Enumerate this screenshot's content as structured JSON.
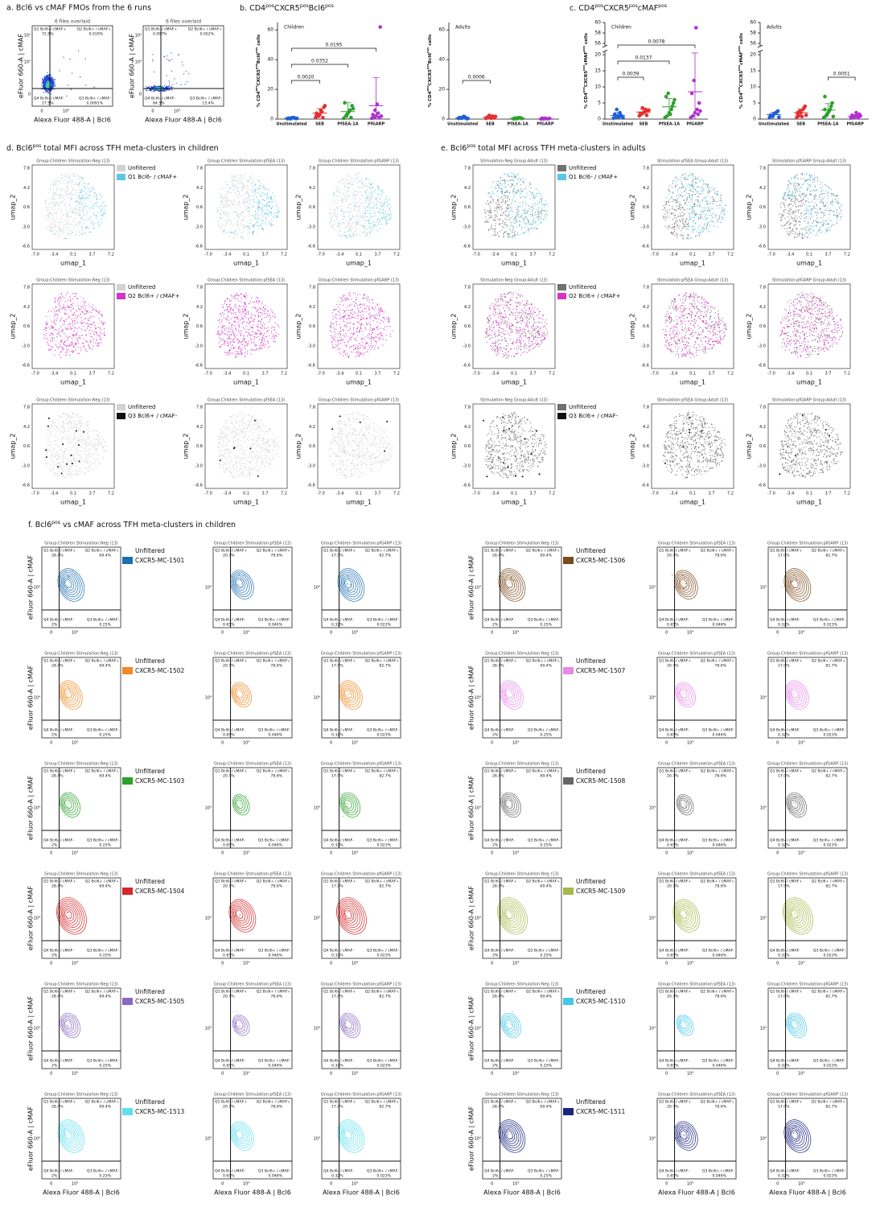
{
  "panel_a": {
    "title": "a. Bcl6 vs cMAF FMOs from the 6 runs",
    "header": "6 files overlaid",
    "plots": [
      [
        "72.5%",
        "0.019%",
        "27.5%",
        "0.0091%"
      ],
      [
        "0.097%",
        "0.052%",
        "84.5%",
        "15.4%"
      ]
    ]
  },
  "flow": {
    "ylabel": "eFluor 660-A | cMAF",
    "xlabel": "Alexa Fluor 488-A | Bcl6",
    "quadrant_names": [
      "Q1 Bcl6- / cMAF+",
      "Q2 Bcl6+ / cMAF+",
      "Q4 Bcl6- / cMAF-",
      "Q3 Bcl6+ / cMAF-"
    ],
    "xticks": [
      "0",
      "10⁴"
    ],
    "yticks_a": [
      "10⁵",
      "10⁴",
      "0"
    ],
    "ytick_f": "10⁴"
  },
  "panel_b": {
    "title": [
      "b. CD4",
      "pos",
      "CXCR5",
      "pos",
      "Bcl6",
      "pos"
    ],
    "ylabel": [
      "% CD4",
      "pos",
      "CXCR5",
      "pos",
      "Bcl6",
      "pos",
      " cells"
    ],
    "categories": [
      "Unstimulated",
      "SEB",
      "PfSEA-1A",
      "PfGARP"
    ],
    "colors": [
      "#1f5fd6",
      "#e53030",
      "#2ca02c",
      "#b030d0"
    ],
    "ylim": [
      0,
      65
    ],
    "yticks": [
      0,
      20,
      40,
      60
    ],
    "groups": [
      {
        "name": "Children",
        "points": [
          [
            0.3,
            0.5,
            0.8,
            1.0,
            0.4,
            0.6,
            0.2,
            0.9,
            0.7,
            0.5
          ],
          [
            1,
            2,
            3,
            5,
            8,
            4,
            2,
            6,
            1,
            9,
            3
          ],
          [
            0.5,
            2,
            4,
            6,
            9,
            11,
            3,
            5,
            1,
            7
          ],
          [
            0.5,
            1,
            2,
            4,
            62,
            3,
            6,
            10,
            1,
            2
          ]
        ],
        "means": [
          0.6,
          4,
          5,
          9
        ],
        "sd": [
          0.3,
          3,
          6,
          19
        ],
        "brackets": [
          {
            "from": 0,
            "to": 1,
            "p": "0.0020"
          },
          {
            "from": 0,
            "to": 2,
            "p": "0.0352"
          },
          {
            "from": 0,
            "to": 3,
            "p": "0.0195"
          }
        ]
      },
      {
        "name": "Adults",
        "points": [
          [
            0.5,
            0.8,
            1.2,
            1.5,
            0.3,
            1,
            0.6,
            1.8,
            0.9,
            0.4
          ],
          [
            0.5,
            1,
            1.5,
            2,
            0.8,
            1.2,
            2.5,
            0.6,
            1,
            1.8
          ],
          [
            0.2,
            0.5,
            0.8,
            1,
            0.4,
            0.6,
            0.3,
            0.7
          ],
          [
            0.1,
            0.3,
            0.5,
            0.2,
            0.4,
            0.6,
            0.3
          ]
        ],
        "means": [
          0.9,
          1.3,
          0.6,
          0.3
        ],
        "sd": [
          0.5,
          0.6,
          0.3,
          0.2
        ],
        "brackets": [
          {
            "from": 0,
            "to": 1,
            "p": "0.0006"
          }
        ]
      }
    ]
  },
  "panel_c": {
    "title": [
      "c. CD4",
      "pos",
      "CXCR5",
      "pos",
      "cMAF",
      "pos"
    ],
    "ylabel": [
      "% CD4",
      "pos",
      "CXCR5",
      "pos",
      "cMAF",
      "pos",
      " cells"
    ],
    "ylim": [
      0,
      20
    ],
    "yticks": [
      0,
      5,
      10,
      15,
      20
    ],
    "ylim_upper": [
      56,
      60
    ],
    "yticks_upper": [
      56,
      58,
      60
    ],
    "groups": [
      {
        "name": "Children",
        "points": [
          [
            0.3,
            0.5,
            1,
            2,
            0.8,
            1.5,
            3,
            0.6,
            1.2,
            0.4
          ],
          [
            1,
            1.5,
            2,
            3,
            2.5,
            1.8,
            3.5,
            2.2,
            1.2,
            2.8
          ],
          [
            0.5,
            1,
            2,
            3,
            5,
            7,
            8,
            1.5,
            4,
            6
          ],
          [
            0.5,
            1,
            2,
            3,
            5,
            8,
            12,
            59,
            1.5,
            2.5
          ]
        ],
        "means": [
          1.1,
          2.2,
          3.8,
          8.5
        ],
        "sd": [
          0.9,
          0.8,
          2.6,
          17
        ],
        "brackets": [
          {
            "from": 0,
            "to": 1,
            "p": "0.0039"
          },
          {
            "from": 0,
            "to": 2,
            "p": "0.0137"
          },
          {
            "from": 0,
            "to": 3,
            "p": "0.0078"
          }
        ]
      },
      {
        "name": "Adults",
        "points": [
          [
            0.5,
            1,
            1.5,
            2,
            2.5,
            1.2,
            0.8,
            1.8,
            2.2,
            0.6,
            1
          ],
          [
            0.5,
            1,
            2,
            3,
            4,
            1.5,
            2.5,
            0.8,
            3.5,
            1.2,
            2
          ],
          [
            0.5,
            1,
            2,
            3,
            5,
            7,
            1.5,
            2.5,
            4,
            0.8,
            3
          ],
          [
            0.3,
            0.5,
            0.8,
            1,
            1.5,
            1.2,
            0.6,
            2,
            0.4,
            1
          ]
        ],
        "means": [
          1.4,
          2,
          2.8,
          0.9
        ],
        "sd": [
          0.7,
          1.1,
          2,
          0.5
        ],
        "brackets": [
          {
            "from": 2,
            "to": 3,
            "p": "0.0051"
          }
        ]
      }
    ]
  },
  "umap": {
    "xlabel": "umap_1",
    "ylabel": "umap_2",
    "unfiltered": "Unfiltered",
    "xticks": [
      "-7.0",
      "-3.4",
      "0.1",
      "3.7",
      "7.2"
    ],
    "yticks": [
      "7.8",
      "4.2",
      "0.6",
      "-3.0",
      "-6.6"
    ]
  },
  "panel_d": {
    "title": [
      "d. Bcl6",
      "pos",
      " total MFI across TFH meta-clusters in children"
    ],
    "headers": [
      "Group:Children  Stimulation:Neg  (13)",
      "Group:Children  Stimulation:pfSEA  (13)",
      "Group:Children  Stimulation:pfGARP  (13)"
    ],
    "unfiltered_color": "#d2d2d2",
    "rows": [
      {
        "name": "Q1 Bcl6- / cMAF+",
        "color": "#5bc6e6"
      },
      {
        "name": "Q2 Bcl6+ / cMAF+",
        "color": "#d633c8"
      },
      {
        "name": "Q3 Bcl6+ / cMAF-",
        "color": "#111111"
      }
    ]
  },
  "panel_e": {
    "title": [
      "e. Bcl6",
      "pos",
      "  total  MFI across TFH meta-clusters in adults"
    ],
    "headers": [
      "Stimulation:Neg  Group:Adult  (13)",
      "Stimulation:pfSEA  Group:Adult  (13)",
      "Stimulation:pfGARP  Group:Adult  (13)"
    ],
    "unfiltered_color": "#707070"
  },
  "panel_f": {
    "title": [
      "f. Bcl6",
      "pos",
      " vs cMAF across TFH meta-clusters in children"
    ],
    "columns": [
      [
        "28.4%",
        "69.4%",
        "2%",
        "0.25%"
      ],
      [
        "20.7%",
        "78.6%",
        "0.65%",
        "0.046%"
      ],
      [
        "17.0%",
        "82.7%",
        "0.32%",
        "0.023%"
      ]
    ],
    "left": [
      {
        "name": "CXCR5-MC-1501",
        "color": "#1f6fb0"
      },
      {
        "name": "CXCR5-MC-1502",
        "color": "#f08a24"
      },
      {
        "name": "CXCR5-MC-1503",
        "color": "#2ca02c"
      },
      {
        "name": "CXCR5-MC-1504",
        "color": "#d62728"
      },
      {
        "name": "CXCR5-MC-1505",
        "color": "#8a68c0"
      },
      {
        "name": "CXCR5-MC-1513",
        "color": "#5ee0f0"
      }
    ],
    "right": [
      {
        "name": "CXCR5-MC-1506",
        "color": "#7b4a1e"
      },
      {
        "name": "CXCR5-MC-1507",
        "color": "#e88ae8"
      },
      {
        "name": "CXCR5-MC-1508",
        "color": "#666666"
      },
      {
        "name": "CXCR5-MC-1509",
        "color": "#a6b84a"
      },
      {
        "name": "CXCR5-MC-1510",
        "color": "#45c8e8"
      },
      {
        "name": "CXCR5-MC-1511",
        "color": "#1a237e"
      }
    ]
  }
}
